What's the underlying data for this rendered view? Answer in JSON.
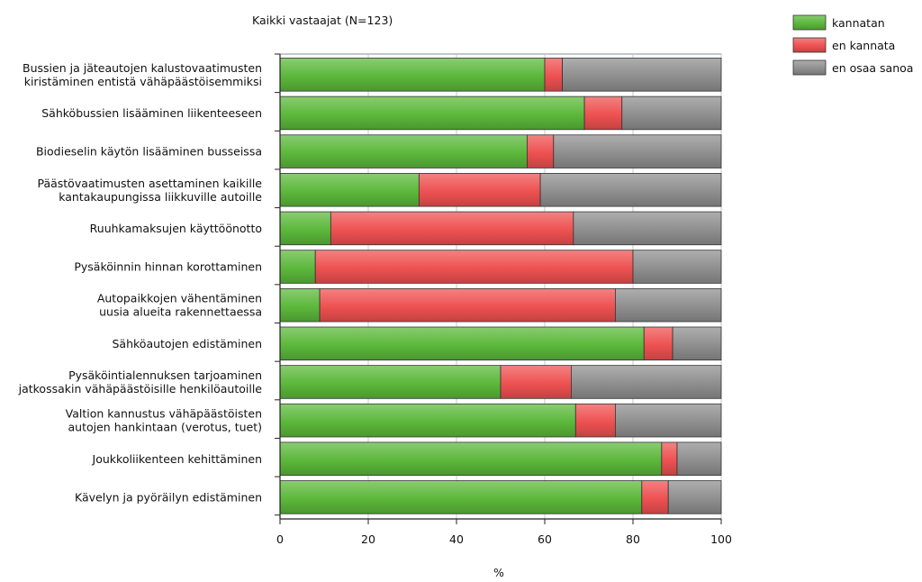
{
  "chart_data": {
    "type": "bar",
    "orientation": "horizontal",
    "stacked": true,
    "title": "Kaikki vastaajat (N=123)",
    "xlabel": "%",
    "ylabel": "",
    "xlim": [
      0,
      100
    ],
    "xticks": [
      "0",
      "20",
      "40",
      "60",
      "80",
      "100"
    ],
    "grid": true,
    "legend_position": "top-right",
    "categories": [
      [
        "Bussien ja jäteautojen kalustovaatimusten",
        "kiristäminen entistä vähäpäästöisemmiksi"
      ],
      [
        "Sähköbussien lisääminen liikenteeseen"
      ],
      [
        "Biodieselin käytön lisääminen busseissa"
      ],
      [
        "Päästövaatimusten asettaminen kaikille",
        "kantakaupungissa liikkuville autoille"
      ],
      [
        "Ruuhkamaksujen käyttöönotto"
      ],
      [
        "Pysäköinnin hinnan korottaminen"
      ],
      [
        "Autopaikkojen vähentäminen",
        "uusia alueita rakennettaessa"
      ],
      [
        "Sähköautojen edistäminen"
      ],
      [
        "Pysäköintialennuksen tarjoaminen",
        "jatkossakin vähäpäästöisille henkilöautoille"
      ],
      [
        "Valtion kannustus vähäpäästöisten",
        "autojen hankintaan (verotus, tuet)"
      ],
      [
        "Joukkoliikenteen kehittäminen"
      ],
      [
        "Kävelyn ja pyöräilyn edistäminen"
      ]
    ],
    "series": [
      {
        "name": "kannatan",
        "color": "#5cb83b",
        "values": [
          60,
          69,
          56,
          31.5,
          11.5,
          8,
          9,
          82.5,
          50,
          67,
          86.5,
          82
        ]
      },
      {
        "name": "en kannata",
        "color": "#ee5151",
        "values": [
          4,
          8.5,
          6,
          27.5,
          55,
          72,
          67,
          6.5,
          16,
          9,
          3.5,
          6
        ]
      },
      {
        "name": "en osaa sanoa",
        "color": "#8f8f8f",
        "values": [
          36,
          22.5,
          38,
          41,
          33.5,
          20,
          24,
          11,
          34,
          24,
          10,
          12
        ]
      }
    ]
  }
}
